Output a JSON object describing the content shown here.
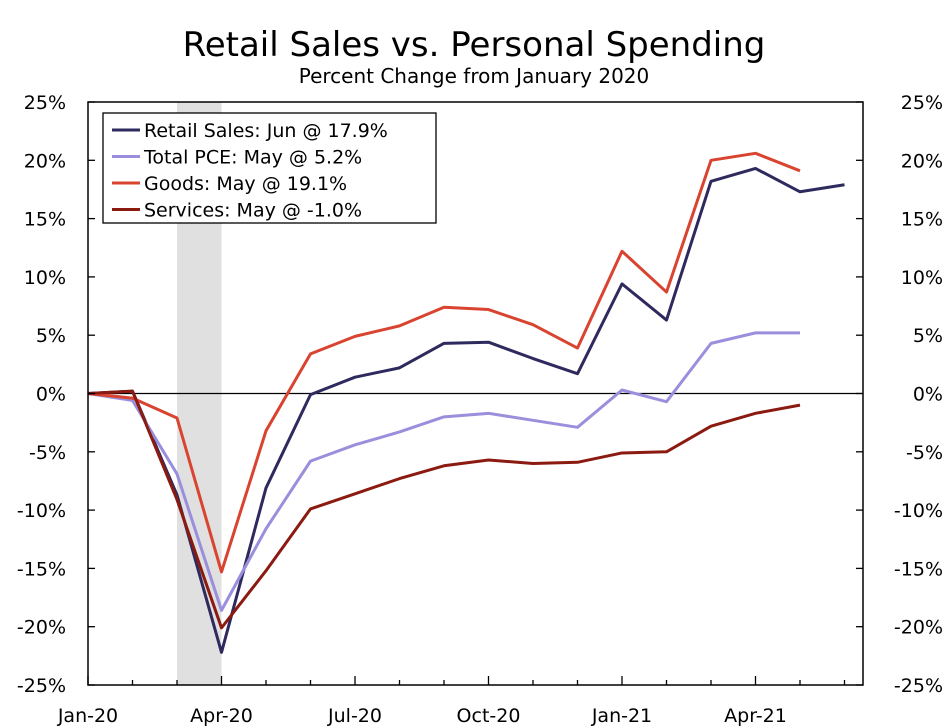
{
  "chart_data": {
    "type": "line",
    "title": "Retail Sales vs. Personal Spending",
    "subtitle": "Percent Change from January 2020",
    "xlabel": "",
    "ylabel": "",
    "ylim": [
      -25,
      25
    ],
    "y_tick_values": [
      -25,
      -20,
      -15,
      -10,
      -5,
      0,
      5,
      10,
      15,
      20,
      25
    ],
    "y_tick_labels": [
      "-25%",
      "-20%",
      "-15%",
      "-10%",
      "-5%",
      "0%",
      "5%",
      "10%",
      "15%",
      "20%",
      "25%"
    ],
    "x_categories": [
      "Jan-20",
      "Feb-20",
      "Mar-20",
      "Apr-20",
      "May-20",
      "Jun-20",
      "Jul-20",
      "Aug-20",
      "Sep-20",
      "Oct-20",
      "Nov-20",
      "Dec-20",
      "Jan-21",
      "Feb-21",
      "Mar-21",
      "Apr-21",
      "May-21",
      "Jun-21"
    ],
    "x_tick_labels": [
      {
        "index": 0,
        "label": "Jan-20"
      },
      {
        "index": 3,
        "label": "Apr-20"
      },
      {
        "index": 6,
        "label": "Jul-20"
      },
      {
        "index": 9,
        "label": "Oct-20"
      },
      {
        "index": 12,
        "label": "Jan-21"
      },
      {
        "index": 15,
        "label": "Apr-21"
      }
    ],
    "recession_shading": {
      "start_month_index": 2,
      "end_month_index": 3
    },
    "legend_position": "top-left",
    "series": [
      {
        "name": "Retail Sales: Jun @ 17.9%",
        "color": "#2e2a5e",
        "values": [
          0,
          0.2,
          -8.7,
          -22.2,
          -8.1,
          -0.1,
          1.4,
          2.2,
          4.3,
          4.4,
          3.0,
          1.7,
          9.4,
          6.3,
          18.2,
          19.3,
          17.3,
          17.9
        ]
      },
      {
        "name": "Total PCE: May @ 5.2%",
        "color": "#9a8fdc",
        "values": [
          0,
          -0.6,
          -6.9,
          -18.6,
          -11.6,
          -5.8,
          -4.4,
          -3.3,
          -2.0,
          -1.7,
          -2.3,
          -2.9,
          0.3,
          -0.7,
          4.3,
          5.2,
          5.2
        ]
      },
      {
        "name": "Goods: May @ 19.1%",
        "color": "#d94430",
        "values": [
          0,
          -0.4,
          -2.1,
          -15.3,
          -3.2,
          3.4,
          4.9,
          5.8,
          7.4,
          7.2,
          5.9,
          3.9,
          12.2,
          8.7,
          20.0,
          20.6,
          19.1
        ]
      },
      {
        "name": "Services: May @ -1.0%",
        "color": "#8b1a10",
        "values": [
          0,
          0.2,
          -9.1,
          -20.1,
          -15.2,
          -9.9,
          -8.6,
          -7.3,
          -6.2,
          -5.7,
          -6.0,
          -5.9,
          -5.1,
          -5.0,
          -2.8,
          -1.7,
          -1.0
        ]
      }
    ]
  }
}
